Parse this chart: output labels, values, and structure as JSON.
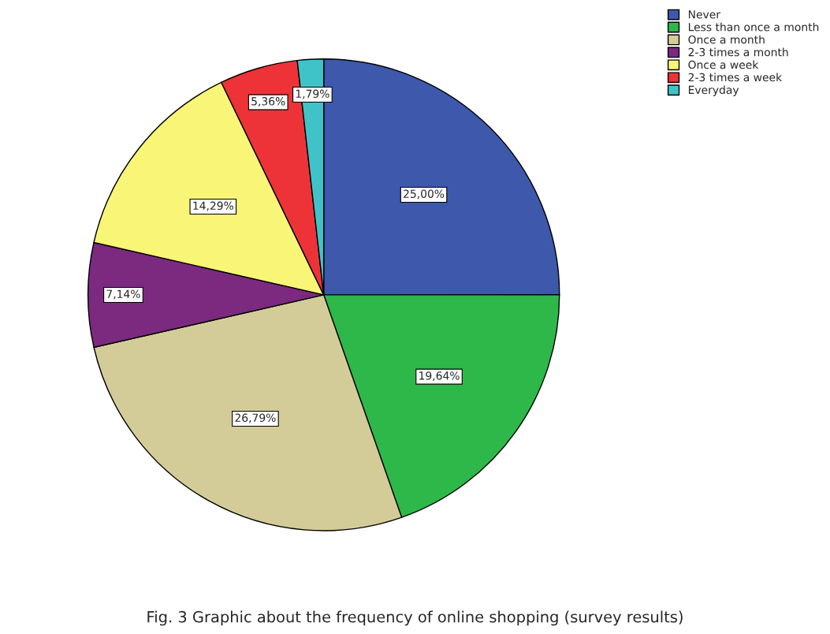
{
  "chart_data": {
    "type": "pie",
    "categories": [
      "Never",
      "Less than once a month",
      "Once a month",
      "2-3 times a month",
      "Once a week",
      "2-3 times a week",
      "Everyday"
    ],
    "values": [
      25.0,
      19.64,
      26.79,
      7.14,
      14.29,
      5.36,
      1.79
    ],
    "value_labels": [
      "25,00%",
      "19,64%",
      "26,79%",
      "7,14%",
      "14,29%",
      "5,36%",
      "1,79%"
    ],
    "colors": [
      "#3e58ac",
      "#2eb84a",
      "#d4cc98",
      "#7b2a80",
      "#f8f577",
      "#ee3338",
      "#40c3c8"
    ],
    "legend": "top right",
    "annotations": [
      "Fig. 3 Graphic about the frequency of online shopping (survey results)"
    ]
  }
}
